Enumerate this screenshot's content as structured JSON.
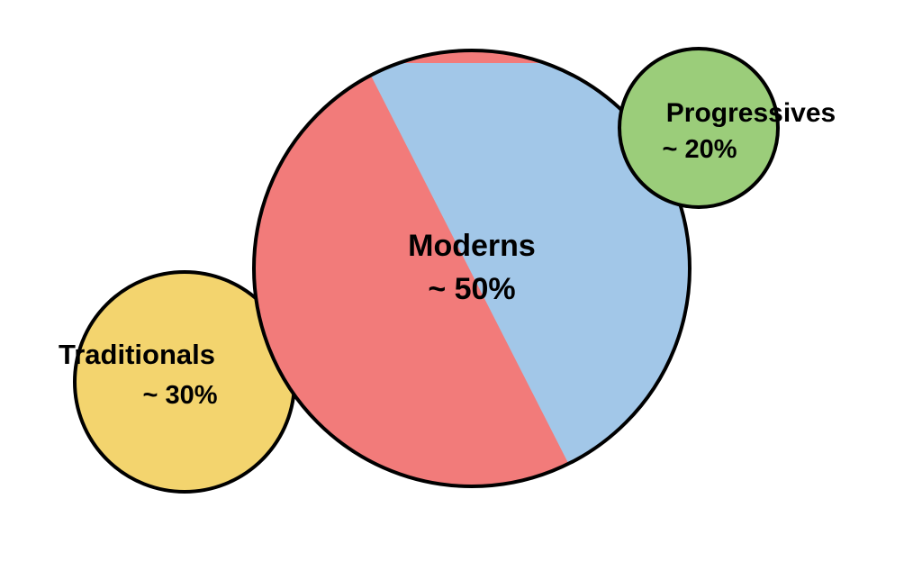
{
  "diagram": {
    "groups": [
      {
        "key": "traditionals",
        "name": "Traditionals",
        "share_text": "~ 30%",
        "color": "#f3d46e"
      },
      {
        "key": "moderns",
        "name": "Moderns",
        "share_text": "~ 50%",
        "color_left": "#f27b7a",
        "color_right": "#a2c7e8"
      },
      {
        "key": "progressives",
        "name": "Progressives",
        "share_text": "~ 20%",
        "color": "#9bcd7a"
      }
    ],
    "outline_color": "#000000"
  }
}
